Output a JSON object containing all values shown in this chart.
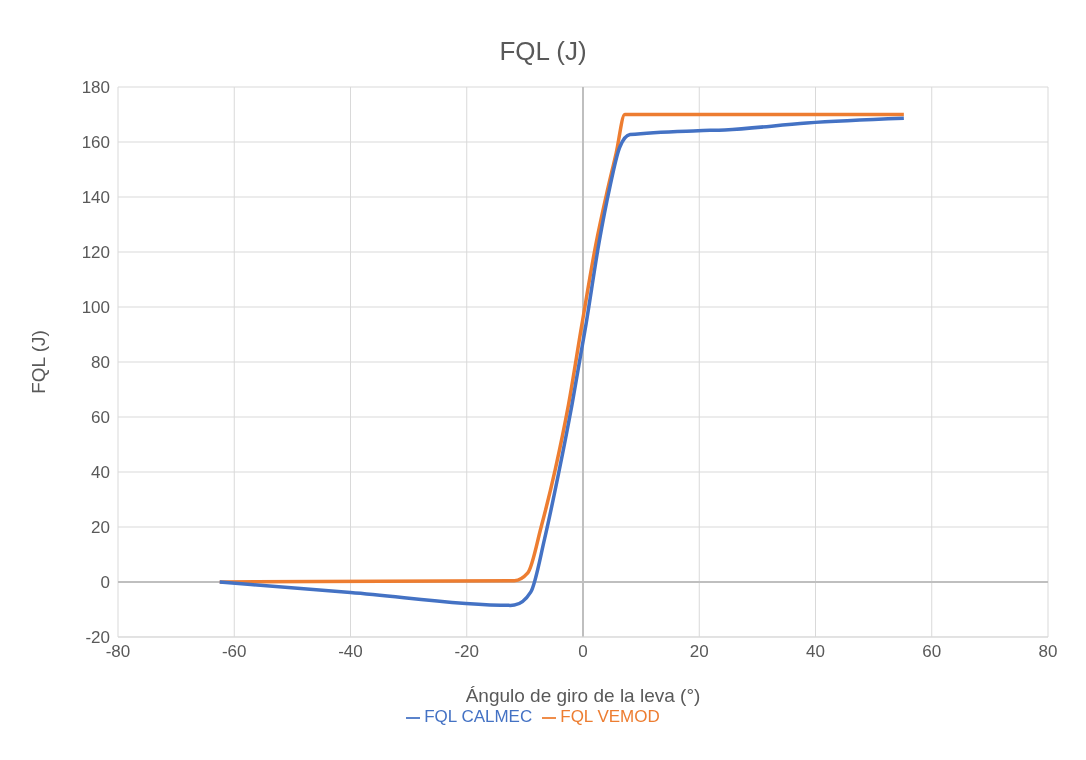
{
  "chart_data": {
    "type": "line",
    "title": "FQL (J)",
    "xlabel": "Ángulo de giro de la leva (°)",
    "ylabel": "FQL  (J)",
    "xlim": [
      -80,
      80
    ],
    "xticks": [
      -80,
      -60,
      -40,
      -20,
      0,
      20,
      40,
      60,
      80
    ],
    "ylim": [
      -20,
      180
    ],
    "yticks": [
      -20,
      0,
      20,
      40,
      60,
      80,
      100,
      120,
      140,
      160,
      180
    ],
    "grid": true,
    "legend": "bottom",
    "marker": "none",
    "line_style": "solid",
    "series": [
      {
        "name": "FQL VEMOD",
        "color": "#ed7d31",
        "x": [
          -62.5,
          -11.8,
          -9.5,
          -7.2,
          -4.8,
          -2.5,
          -0.2,
          2.2,
          4.0,
          5.7,
          7.2,
          55.2
        ],
        "values": [
          0,
          0.5,
          3.3,
          20,
          40.7,
          64.4,
          93.5,
          122.6,
          140.5,
          155.9,
          170,
          170
        ]
      },
      {
        "name": "FQL CALMEC",
        "color": "#4472c4",
        "x": [
          -62.5,
          -40,
          -12.5,
          -11.8,
          -9.0,
          -6.6,
          -4.2,
          -1.9,
          0.5,
          2.8,
          4.6,
          6.3,
          8.1,
          19.8,
          24.4,
          38.5,
          55.2
        ],
        "values": [
          0,
          -3.8,
          -8.5,
          -8.4,
          -3.7,
          15.8,
          39.5,
          64.4,
          93.5,
          123.9,
          143.4,
          158,
          162.7,
          164.1,
          164.4,
          166.9,
          168.6
        ]
      }
    ]
  }
}
